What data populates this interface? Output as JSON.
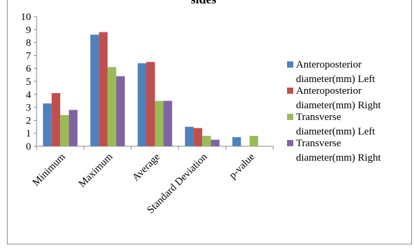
{
  "chart_data": {
    "type": "bar",
    "title": "sides",
    "categories": [
      "Minimum",
      "Maximum",
      "Average",
      "Standard Deviation",
      "p-value"
    ],
    "series": [
      {
        "name": "Anteroposterior diameter(mm) Left",
        "name_lines": [
          "Anteroposterior",
          "diameter(mm) Left"
        ],
        "color": "#4F81BD",
        "values": [
          3.3,
          8.6,
          6.4,
          1.5,
          0.7
        ]
      },
      {
        "name": "Anteroposterior diameter(mm) Right",
        "name_lines": [
          "Anteroposterior",
          "diameter(mm) Right"
        ],
        "color": "#C0504D",
        "values": [
          4.1,
          8.8,
          6.5,
          1.4,
          null
        ]
      },
      {
        "name": "Transverse diameter(mm) Left",
        "name_lines": [
          "Transverse",
          "diameter(mm) Left"
        ],
        "color": "#9BBB59",
        "values": [
          2.4,
          6.1,
          3.5,
          0.8,
          0.8
        ]
      },
      {
        "name": "Transverse diameter(mm) Right",
        "name_lines": [
          "Transverse",
          "diameter(mm) Right"
        ],
        "color": "#8064A2",
        "values": [
          2.8,
          5.4,
          3.5,
          0.5,
          null
        ]
      }
    ],
    "ylim": [
      0,
      10
    ],
    "yticks": [
      "0",
      "1",
      "2",
      "3",
      "4",
      "5",
      "6",
      "7",
      "8",
      "9",
      "10"
    ],
    "grid": false,
    "legend_position": "right"
  }
}
